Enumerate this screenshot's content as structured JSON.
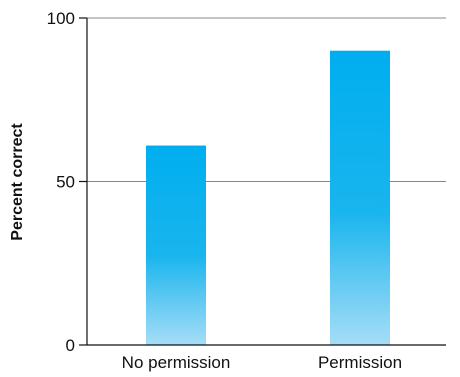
{
  "chart_data": {
    "type": "bar",
    "categories": [
      "No permission",
      "Permission"
    ],
    "values": [
      61,
      90
    ],
    "title": "",
    "xlabel": "",
    "ylabel": "Percent correct",
    "ylim": [
      0,
      100
    ],
    "yticks": [
      0,
      50,
      100
    ],
    "grid": true,
    "colors": {
      "bar_top": "#00aeef",
      "bar_mid": "#19b5ee",
      "bar_bottom": "#a6ddf7",
      "gridline": "#888888",
      "axis": "#111111"
    }
  }
}
